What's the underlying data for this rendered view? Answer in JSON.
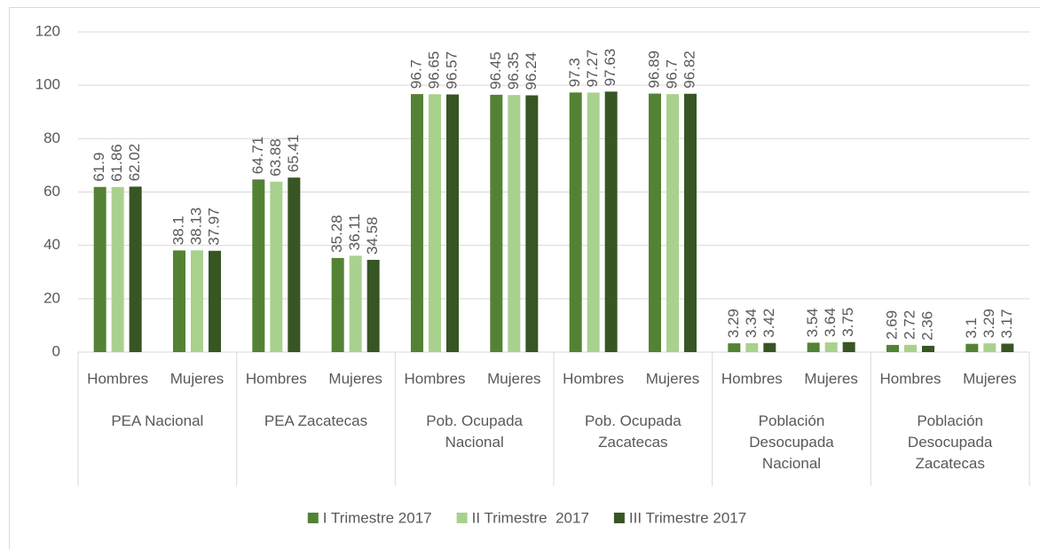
{
  "chart_data": {
    "type": "bar",
    "categories": [
      "Hombres",
      "Mujeres",
      "Hombres",
      "Mujeres",
      "Hombres",
      "Mujeres",
      "Hombres",
      "Mujeres",
      "Hombres",
      "Mujeres",
      "Hombres",
      "Mujeres"
    ],
    "groups": [
      "PEA Nacional",
      "PEA Zacatecas",
      "Pob. Ocupada Nacional",
      "Pob. Ocupada Zacatecas",
      "Población Desocupada Nacional",
      "Población Desocupada Zacatecas"
    ],
    "series": [
      {
        "name": "I Trimestre 2017",
        "color": "#548235",
        "values": [
          61.9,
          38.1,
          64.71,
          35.28,
          96.7,
          96.45,
          97.3,
          96.89,
          3.29,
          3.54,
          2.69,
          3.1
        ]
      },
      {
        "name": "II Trimestre  2017",
        "color": "#a9d18e",
        "values": [
          61.86,
          38.13,
          63.88,
          36.11,
          96.65,
          96.35,
          97.27,
          96.7,
          3.34,
          3.64,
          2.72,
          3.29
        ]
      },
      {
        "name": "III Trimestre 2017",
        "color": "#375623",
        "values": [
          62.02,
          37.97,
          65.41,
          34.58,
          96.57,
          96.24,
          97.63,
          96.82,
          3.42,
          3.75,
          2.36,
          3.17
        ]
      }
    ],
    "ylim": [
      0,
      120
    ],
    "yticks": [
      0,
      20,
      40,
      60,
      80,
      100,
      120
    ],
    "grid": true,
    "legend": "bottom",
    "data_labels": true
  }
}
